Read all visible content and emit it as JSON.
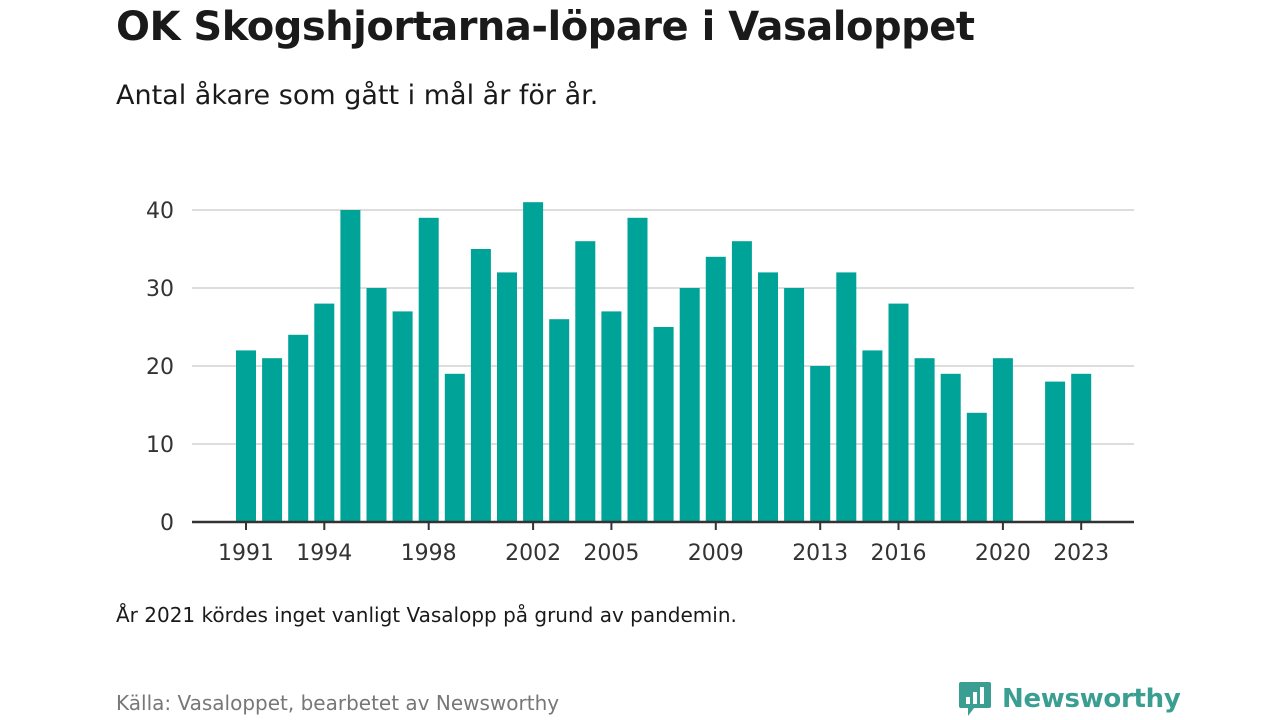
{
  "title": "OK Skogshjortarna-löpare i Vasaloppet",
  "subtitle": "Antal åkare som gått i mål år för år.",
  "note": "År 2021 kördes inget vanligt Vasalopp på grund av pandemin.",
  "source": "Källa: Vasaloppet, bearbetet av Newsworthy",
  "brand": {
    "name": "Newsworthy",
    "icon": "newsworthy-logo-icon"
  },
  "colors": {
    "bar": "#00a398",
    "grid": "#dddddd",
    "axis": "#333333",
    "brand": "#3a9e92"
  },
  "chart_data": {
    "type": "bar",
    "categories": [
      1991,
      1992,
      1993,
      1994,
      1995,
      1996,
      1997,
      1998,
      1999,
      2000,
      2001,
      2002,
      2003,
      2004,
      2005,
      2006,
      2007,
      2008,
      2009,
      2010,
      2011,
      2012,
      2013,
      2014,
      2015,
      2016,
      2017,
      2018,
      2019,
      2020,
      2021,
      2022,
      2023
    ],
    "values": [
      22,
      21,
      24,
      28,
      40,
      30,
      27,
      39,
      19,
      35,
      32,
      41,
      26,
      36,
      27,
      39,
      25,
      30,
      34,
      36,
      32,
      30,
      20,
      32,
      22,
      28,
      21,
      19,
      14,
      21,
      null,
      18,
      19
    ],
    "x_tick_labels": [
      "1991",
      "1994",
      "1998",
      "2002",
      "2005",
      "2009",
      "2013",
      "2016",
      "2020",
      "2023"
    ],
    "y_ticks": [
      0,
      10,
      20,
      30,
      40
    ],
    "ylim": [
      0,
      42
    ],
    "xlabel": "",
    "ylabel": "",
    "grid": "horizontal",
    "legend": "none"
  }
}
